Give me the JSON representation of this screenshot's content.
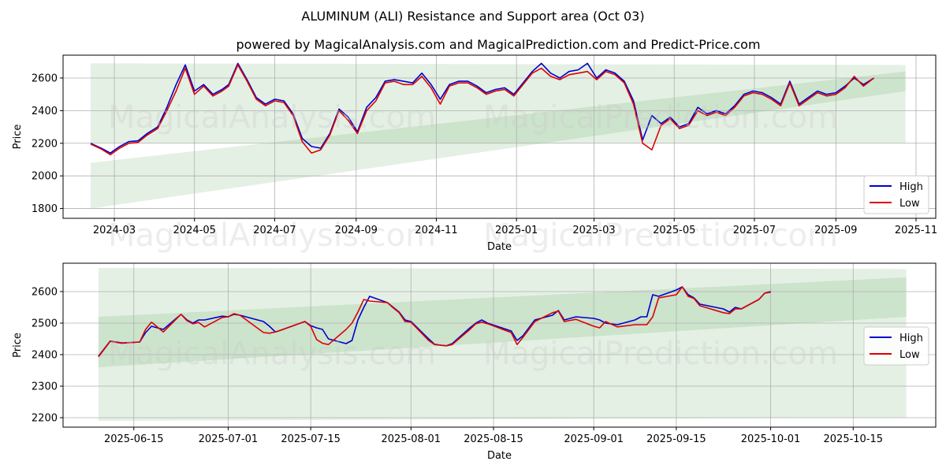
{
  "title": "ALUMINUM (ALI) Resistance and Support area (Oct 03)",
  "subtitle": "powered by MagicalAnalysis.com and MagicalPrediction.com and Predict-Price.com",
  "watermarks": [
    "MagicalAnalysis.com",
    "MagicalPrediction.com"
  ],
  "colors": {
    "high": "#0000cc",
    "low": "#dd0000",
    "band": "#2e8b2e",
    "grid": "#b0b0b0"
  },
  "chart_data": [
    {
      "type": "line",
      "name": "top-chart",
      "xlabel": "Date",
      "ylabel": "Price",
      "x_ticks": [
        "2024-03",
        "2024-05",
        "2024-07",
        "2024-09",
        "2024-11",
        "2025-01",
        "2025-03",
        "2025-05",
        "2025-07",
        "2025-09",
        "2025-11"
      ],
      "x_tick_dates": [
        "2024-03-01",
        "2024-05-01",
        "2024-07-01",
        "2024-09-01",
        "2024-11-01",
        "2025-01-01",
        "2025-03-01",
        "2025-05-01",
        "2025-07-01",
        "2025-09-01",
        "2025-11-01"
      ],
      "xlim": [
        "2024-01-22",
        "2025-11-16"
      ],
      "y_ticks": [
        1800,
        2000,
        2200,
        2400,
        2600
      ],
      "ylim": [
        1740,
        2740
      ],
      "legend": [
        "High",
        "Low"
      ],
      "legend_position": "lower-right",
      "bands": [
        {
          "start": "2024-02-12",
          "end": "2025-10-24",
          "lower": [
            2200,
            2200
          ],
          "upper": [
            2690,
            2680
          ]
        },
        {
          "start": "2024-02-12",
          "end": "2025-10-24",
          "lower": [
            1800,
            2520
          ],
          "upper": [
            2080,
            2640
          ]
        }
      ],
      "series": [
        {
          "name": "High",
          "dates": [
            "2024-02-12",
            "2024-02-20",
            "2024-02-27",
            "2024-03-05",
            "2024-03-12",
            "2024-03-19",
            "2024-03-26",
            "2024-04-03",
            "2024-04-10",
            "2024-04-17",
            "2024-04-24",
            "2024-05-01",
            "2024-05-08",
            "2024-05-15",
            "2024-05-22",
            "2024-05-27",
            "2024-06-03",
            "2024-06-10",
            "2024-06-17",
            "2024-06-24",
            "2024-07-01",
            "2024-07-08",
            "2024-07-15",
            "2024-07-22",
            "2024-07-29",
            "2024-08-05",
            "2024-08-12",
            "2024-08-19",
            "2024-08-26",
            "2024-09-02",
            "2024-09-09",
            "2024-09-16",
            "2024-09-23",
            "2024-09-30",
            "2024-10-07",
            "2024-10-14",
            "2024-10-21",
            "2024-10-28",
            "2024-11-04",
            "2024-11-11",
            "2024-11-18",
            "2024-11-25",
            "2024-12-02",
            "2024-12-09",
            "2024-12-16",
            "2024-12-23",
            "2024-12-30",
            "2025-01-06",
            "2025-01-13",
            "2025-01-20",
            "2025-01-27",
            "2025-02-03",
            "2025-02-10",
            "2025-02-17",
            "2025-02-24",
            "2025-03-03",
            "2025-03-10",
            "2025-03-17",
            "2025-03-24",
            "2025-03-31",
            "2025-04-07",
            "2025-04-14",
            "2025-04-21",
            "2025-04-28",
            "2025-05-05",
            "2025-05-12",
            "2025-05-19",
            "2025-05-26",
            "2025-06-02",
            "2025-06-09",
            "2025-06-16",
            "2025-06-23",
            "2025-06-30",
            "2025-07-07",
            "2025-07-14",
            "2025-07-21",
            "2025-07-28",
            "2025-08-04",
            "2025-08-11",
            "2025-08-18",
            "2025-08-25",
            "2025-09-01",
            "2025-09-08",
            "2025-09-15",
            "2025-09-22",
            "2025-09-30"
          ],
          "values": [
            2200,
            2170,
            2140,
            2180,
            2210,
            2215,
            2260,
            2300,
            2420,
            2560,
            2680,
            2520,
            2560,
            2500,
            2530,
            2560,
            2690,
            2590,
            2480,
            2440,
            2470,
            2460,
            2380,
            2230,
            2180,
            2170,
            2260,
            2410,
            2360,
            2270,
            2420,
            2480,
            2580,
            2590,
            2580,
            2570,
            2630,
            2560,
            2470,
            2560,
            2580,
            2580,
            2550,
            2510,
            2530,
            2540,
            2500,
            2570,
            2640,
            2690,
            2630,
            2600,
            2640,
            2650,
            2690,
            2600,
            2650,
            2630,
            2580,
            2460,
            2220,
            2370,
            2320,
            2360,
            2300,
            2320,
            2420,
            2380,
            2400,
            2380,
            2430,
            2500,
            2520,
            2510,
            2480,
            2440,
            2580,
            2440,
            2480,
            2520,
            2500,
            2510,
            2550,
            2600,
            2560,
            2600
          ]
        },
        {
          "name": "Low",
          "dates": [
            "2024-02-12",
            "2024-02-20",
            "2024-02-27",
            "2024-03-05",
            "2024-03-12",
            "2024-03-19",
            "2024-03-26",
            "2024-04-03",
            "2024-04-10",
            "2024-04-17",
            "2024-04-24",
            "2024-05-01",
            "2024-05-08",
            "2024-05-15",
            "2024-05-22",
            "2024-05-27",
            "2024-06-03",
            "2024-06-10",
            "2024-06-17",
            "2024-06-24",
            "2024-07-01",
            "2024-07-08",
            "2024-07-15",
            "2024-07-22",
            "2024-07-29",
            "2024-08-05",
            "2024-08-12",
            "2024-08-19",
            "2024-08-26",
            "2024-09-02",
            "2024-09-09",
            "2024-09-16",
            "2024-09-23",
            "2024-09-30",
            "2024-10-07",
            "2024-10-14",
            "2024-10-21",
            "2024-10-28",
            "2024-11-04",
            "2024-11-11",
            "2024-11-18",
            "2024-11-25",
            "2024-12-02",
            "2024-12-09",
            "2024-12-16",
            "2024-12-23",
            "2024-12-30",
            "2025-01-06",
            "2025-01-13",
            "2025-01-20",
            "2025-01-27",
            "2025-02-03",
            "2025-02-10",
            "2025-02-17",
            "2025-02-24",
            "2025-03-03",
            "2025-03-10",
            "2025-03-17",
            "2025-03-24",
            "2025-03-31",
            "2025-04-07",
            "2025-04-14",
            "2025-04-21",
            "2025-04-28",
            "2025-05-05",
            "2025-05-12",
            "2025-05-19",
            "2025-05-26",
            "2025-06-02",
            "2025-06-09",
            "2025-06-16",
            "2025-06-23",
            "2025-06-30",
            "2025-07-07",
            "2025-07-14",
            "2025-07-21",
            "2025-07-28",
            "2025-08-04",
            "2025-08-11",
            "2025-08-18",
            "2025-08-25",
            "2025-09-01",
            "2025-09-08",
            "2025-09-15",
            "2025-09-22",
            "2025-09-30"
          ],
          "values": [
            2195,
            2165,
            2130,
            2170,
            2200,
            2205,
            2250,
            2290,
            2400,
            2520,
            2660,
            2500,
            2550,
            2490,
            2520,
            2550,
            2680,
            2580,
            2470,
            2430,
            2460,
            2450,
            2370,
            2210,
            2140,
            2160,
            2250,
            2400,
            2340,
            2260,
            2400,
            2460,
            2570,
            2580,
            2560,
            2560,
            2610,
            2540,
            2440,
            2550,
            2570,
            2570,
            2540,
            2500,
            2520,
            2530,
            2490,
            2560,
            2630,
            2660,
            2610,
            2590,
            2620,
            2630,
            2640,
            2590,
            2640,
            2620,
            2570,
            2440,
            2200,
            2160,
            2310,
            2350,
            2290,
            2310,
            2400,
            2370,
            2390,
            2370,
            2420,
            2490,
            2510,
            2500,
            2470,
            2430,
            2570,
            2430,
            2470,
            2510,
            2490,
            2500,
            2540,
            2610,
            2550,
            2600
          ]
        }
      ]
    },
    {
      "type": "line",
      "name": "bottom-chart",
      "xlabel": "Date",
      "ylabel": "Price",
      "x_ticks": [
        "2025-06-15",
        "2025-07-01",
        "2025-07-15",
        "2025-08-01",
        "2025-08-15",
        "2025-09-01",
        "2025-09-15",
        "2025-10-01",
        "2025-10-15"
      ],
      "x_tick_dates": [
        "2025-06-15",
        "2025-07-01",
        "2025-07-15",
        "2025-08-01",
        "2025-08-15",
        "2025-09-01",
        "2025-09-15",
        "2025-10-01",
        "2025-10-15"
      ],
      "xlim": [
        "2025-06-03",
        "2025-10-29"
      ],
      "y_ticks": [
        2200,
        2300,
        2400,
        2500,
        2600
      ],
      "ylim": [
        2170,
        2690
      ],
      "legend": [
        "High",
        "Low"
      ],
      "legend_position": "lower-right",
      "bands": [
        {
          "start": "2025-06-09",
          "end": "2025-10-24",
          "lower": [
            2190,
            2200
          ],
          "upper": [
            2675,
            2672
          ]
        },
        {
          "start": "2025-06-09",
          "end": "2025-10-24",
          "lower": [
            2360,
            2520
          ],
          "upper": [
            2520,
            2645
          ]
        }
      ],
      "series": [
        {
          "name": "High",
          "dates": [
            "2025-06-09",
            "2025-06-11",
            "2025-06-13",
            "2025-06-16",
            "2025-06-17",
            "2025-06-18",
            "2025-06-20",
            "2025-06-23",
            "2025-06-24",
            "2025-06-25",
            "2025-06-26",
            "2025-06-27",
            "2025-06-30",
            "2025-07-01",
            "2025-07-02",
            "2025-07-03",
            "2025-07-07",
            "2025-07-08",
            "2025-07-09",
            "2025-07-10",
            "2025-07-14",
            "2025-07-15",
            "2025-07-16",
            "2025-07-17",
            "2025-07-18",
            "2025-07-21",
            "2025-07-22",
            "2025-07-23",
            "2025-07-24",
            "2025-07-25",
            "2025-07-28",
            "2025-07-29",
            "2025-07-30",
            "2025-07-31",
            "2025-08-01",
            "2025-08-04",
            "2025-08-05",
            "2025-08-06",
            "2025-08-07",
            "2025-08-08",
            "2025-08-11",
            "2025-08-12",
            "2025-08-13",
            "2025-08-14",
            "2025-08-18",
            "2025-08-19",
            "2025-08-20",
            "2025-08-22",
            "2025-08-25",
            "2025-08-26",
            "2025-08-27",
            "2025-08-29",
            "2025-09-01",
            "2025-09-02",
            "2025-09-03",
            "2025-09-05",
            "2025-09-08",
            "2025-09-09",
            "2025-09-10",
            "2025-09-11",
            "2025-09-12",
            "2025-09-15",
            "2025-09-16",
            "2025-09-17",
            "2025-09-18",
            "2025-09-19",
            "2025-09-23",
            "2025-09-24",
            "2025-09-25",
            "2025-09-26",
            "2025-09-29",
            "2025-09-30",
            "2025-10-01"
          ],
          "values": [
            2395,
            2443,
            2437,
            2440,
            2470,
            2490,
            2480,
            2528,
            2510,
            2500,
            2510,
            2510,
            2522,
            2520,
            2528,
            2525,
            2505,
            2490,
            2472,
            2478,
            2505,
            2492,
            2485,
            2480,
            2450,
            2435,
            2445,
            2510,
            2550,
            2585,
            2565,
            2550,
            2535,
            2510,
            2505,
            2450,
            2433,
            2430,
            2428,
            2435,
            2485,
            2500,
            2510,
            2500,
            2475,
            2445,
            2460,
            2510,
            2525,
            2540,
            2510,
            2520,
            2515,
            2510,
            2500,
            2495,
            2510,
            2520,
            2520,
            2590,
            2585,
            2605,
            2615,
            2590,
            2580,
            2560,
            2545,
            2535,
            2550,
            2545,
            2575,
            2595,
            2600
          ]
        },
        {
          "name": "Low",
          "dates": [
            "2025-06-09",
            "2025-06-11",
            "2025-06-13",
            "2025-06-16",
            "2025-06-17",
            "2025-06-18",
            "2025-06-20",
            "2025-06-23",
            "2025-06-24",
            "2025-06-25",
            "2025-06-26",
            "2025-06-27",
            "2025-06-30",
            "2025-07-01",
            "2025-07-02",
            "2025-07-03",
            "2025-07-07",
            "2025-07-08",
            "2025-07-09",
            "2025-07-10",
            "2025-07-14",
            "2025-07-15",
            "2025-07-16",
            "2025-07-17",
            "2025-07-18",
            "2025-07-21",
            "2025-07-22",
            "2025-07-23",
            "2025-07-24",
            "2025-07-25",
            "2025-07-28",
            "2025-07-29",
            "2025-07-30",
            "2025-07-31",
            "2025-08-01",
            "2025-08-04",
            "2025-08-05",
            "2025-08-06",
            "2025-08-07",
            "2025-08-08",
            "2025-08-11",
            "2025-08-12",
            "2025-08-13",
            "2025-08-14",
            "2025-08-18",
            "2025-08-19",
            "2025-08-20",
            "2025-08-22",
            "2025-08-25",
            "2025-08-26",
            "2025-08-27",
            "2025-08-29",
            "2025-09-01",
            "2025-09-02",
            "2025-09-03",
            "2025-09-05",
            "2025-09-08",
            "2025-09-09",
            "2025-09-10",
            "2025-09-11",
            "2025-09-12",
            "2025-09-15",
            "2025-09-16",
            "2025-09-17",
            "2025-09-18",
            "2025-09-19",
            "2025-09-23",
            "2025-09-24",
            "2025-09-25",
            "2025-09-26",
            "2025-09-29",
            "2025-09-30",
            "2025-10-01"
          ],
          "values": [
            2393,
            2442,
            2436,
            2440,
            2480,
            2503,
            2472,
            2528,
            2508,
            2498,
            2502,
            2488,
            2518,
            2520,
            2530,
            2525,
            2470,
            2468,
            2472,
            2478,
            2505,
            2490,
            2448,
            2436,
            2432,
            2480,
            2500,
            2535,
            2575,
            2570,
            2565,
            2548,
            2533,
            2505,
            2503,
            2445,
            2432,
            2430,
            2428,
            2432,
            2480,
            2498,
            2503,
            2498,
            2470,
            2432,
            2455,
            2505,
            2533,
            2538,
            2505,
            2512,
            2490,
            2485,
            2505,
            2488,
            2495,
            2495,
            2495,
            2520,
            2580,
            2590,
            2615,
            2585,
            2578,
            2555,
            2533,
            2530,
            2545,
            2545,
            2575,
            2595,
            2598
          ]
        }
      ]
    }
  ]
}
